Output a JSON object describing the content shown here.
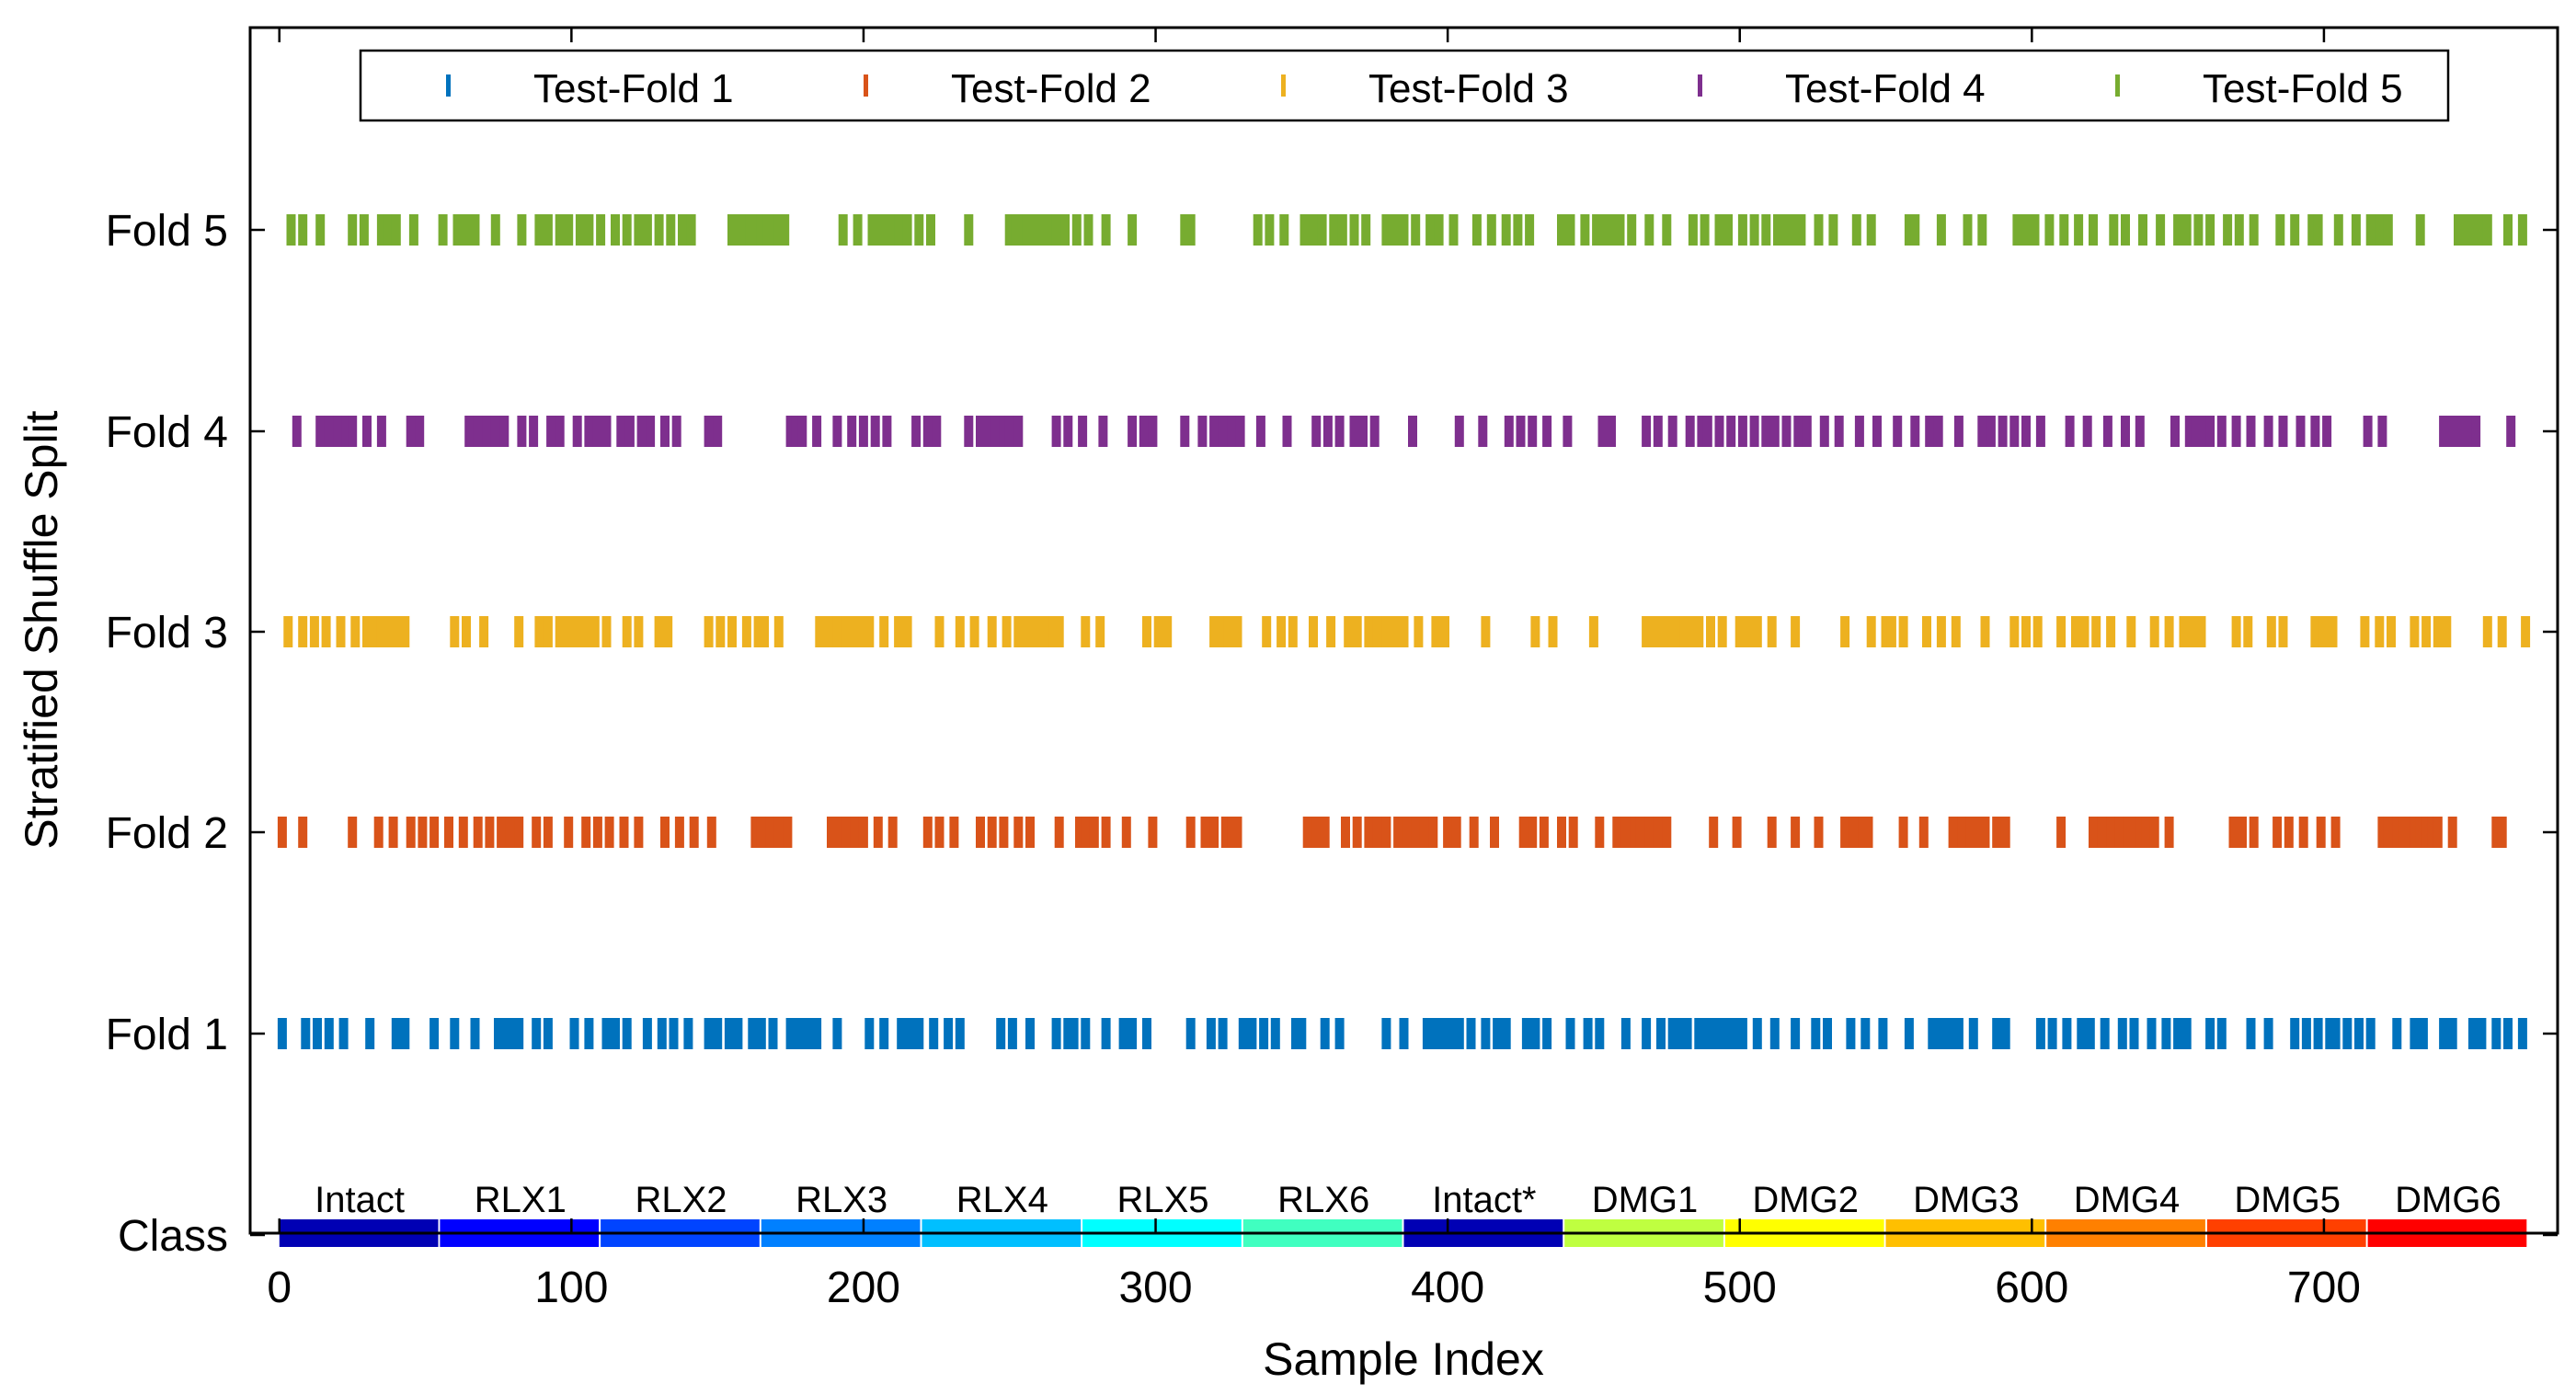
{
  "chart_data": {
    "type": "event-raster",
    "title": "",
    "xlabel": "Sample Index",
    "ylabel": "Stratified Shuffle Split",
    "xlim": [
      -10,
      780
    ],
    "xticks": [
      0,
      100,
      200,
      300,
      400,
      500,
      600,
      700
    ],
    "row_labels": [
      "Fold 5",
      "Fold 4",
      "Fold 3",
      "Fold 2",
      "Fold 1",
      "Class"
    ],
    "legend": {
      "placement": "top",
      "entries": [
        "Test-Fold 1",
        "Test-Fold 2",
        "Test-Fold 3",
        "Test-Fold 4",
        "Test-Fold 5"
      ]
    },
    "series": [
      {
        "name": "Test-Fold 1",
        "row": "Fold 1",
        "color": "#0072BD",
        "values": [
          1,
          9,
          13,
          17,
          22,
          31,
          40,
          43,
          53,
          60,
          67,
          75,
          77,
          79,
          82,
          88,
          92,
          101,
          106,
          112,
          115,
          119,
          126,
          131,
          135,
          140,
          147,
          150,
          154,
          157,
          162,
          165,
          169,
          175,
          177,
          179,
          181,
          184,
          191,
          202,
          207,
          213,
          216,
          219,
          224,
          229,
          233,
          247,
          251,
          257,
          266,
          270,
          272,
          276,
          283,
          289,
          292,
          297,
          312,
          319,
          323,
          330,
          333,
          337,
          341,
          348,
          350,
          358,
          363,
          379,
          385,
          393,
          396,
          398,
          401,
          404,
          408,
          413,
          417,
          420,
          427,
          430,
          434,
          442,
          448,
          452,
          461,
          468,
          473,
          477,
          480,
          482,
          486,
          489,
          492,
          495,
          498,
          501,
          506,
          512,
          519,
          526,
          530,
          538,
          543,
          549,
          558,
          566,
          568,
          570,
          572,
          575,
          580,
          588,
          591,
          603,
          607,
          612,
          617,
          620,
          625,
          631,
          635,
          641,
          646,
          650,
          653,
          661,
          665,
          675,
          681,
          690,
          694,
          698,
          702,
          704,
          708,
          712,
          716,
          725,
          731,
          734,
          741,
          744,
          751,
          754,
          759,
          763,
          768
        ]
      },
      {
        "name": "Test-Fold 2",
        "row": "Fold 2",
        "color": "#D95319",
        "values": [
          1,
          8,
          25,
          34,
          39,
          45,
          49,
          53,
          58,
          63,
          68,
          72,
          76,
          79,
          82,
          88,
          92,
          99,
          105,
          109,
          113,
          118,
          123,
          132,
          137,
          142,
          148,
          163,
          165,
          168,
          171,
          174,
          189,
          192,
          194,
          197,
          200,
          205,
          210,
          222,
          226,
          231,
          240,
          244,
          248,
          253,
          257,
          267,
          274,
          276,
          279,
          283,
          290,
          299,
          312,
          317,
          320,
          324,
          326,
          328,
          352,
          355,
          358,
          365,
          369,
          373,
          376,
          379,
          383,
          386,
          389,
          392,
          395,
          400,
          403,
          409,
          416,
          426,
          429,
          433,
          439,
          443,
          452,
          458,
          461,
          464,
          466,
          469,
          472,
          475,
          491,
          499,
          511,
          519,
          527,
          536,
          539,
          542,
          544,
          556,
          563,
          573,
          576,
          579,
          581,
          584,
          588,
          591,
          610,
          621,
          624,
          627,
          630,
          633,
          635,
          637,
          639,
          642,
          647,
          669,
          672,
          676,
          684,
          688,
          693,
          699,
          704,
          720,
          722,
          725,
          727,
          729,
          731,
          733,
          735,
          737,
          739,
          744,
          759,
          761
        ]
      },
      {
        "name": "Test-Fold 3",
        "row": "Fold 3",
        "color": "#EDB120",
        "values": [
          3,
          8,
          12,
          16,
          21,
          26,
          30,
          33,
          35,
          37,
          39,
          41,
          43,
          60,
          64,
          70,
          82,
          89,
          92,
          96,
          99,
          102,
          105,
          108,
          112,
          119,
          123,
          130,
          133,
          147,
          151,
          155,
          160,
          164,
          166,
          171,
          185,
          188,
          191,
          194,
          196,
          199,
          202,
          207,
          212,
          215,
          226,
          233,
          238,
          244,
          249,
          253,
          256,
          259,
          261,
          263,
          265,
          267,
          276,
          281,
          297,
          301,
          304,
          320,
          323,
          325,
          328,
          338,
          343,
          347,
          354,
          360,
          366,
          369,
          373,
          376,
          379,
          382,
          385,
          390,
          396,
          399,
          413,
          430,
          436,
          450,
          468,
          471,
          474,
          477,
          479,
          481,
          483,
          486,
          490,
          494,
          500,
          503,
          506,
          511,
          519,
          536,
          545,
          550,
          552,
          556,
          564,
          569,
          574,
          584,
          594,
          598,
          602,
          610,
          615,
          618,
          622,
          627,
          634,
          642,
          647,
          652,
          655,
          658,
          670,
          674,
          682,
          686,
          697,
          700,
          703,
          714,
          719,
          723,
          731,
          735,
          739,
          742,
          756,
          761,
          769
        ]
      },
      {
        "name": "Test-Fold 4",
        "row": "Fold 4",
        "color": "#7E2F8E",
        "values": [
          6,
          14,
          17,
          20,
          23,
          25,
          30,
          35,
          45,
          48,
          65,
          68,
          71,
          74,
          77,
          83,
          87,
          93,
          96,
          102,
          106,
          109,
          112,
          117,
          120,
          124,
          127,
          132,
          136,
          147,
          150,
          175,
          177,
          179,
          184,
          191,
          196,
          200,
          204,
          208,
          218,
          222,
          225,
          236,
          240,
          243,
          245,
          248,
          250,
          253,
          266,
          270,
          275,
          282,
          292,
          296,
          299,
          310,
          316,
          320,
          323,
          326,
          329,
          336,
          345,
          355,
          359,
          363,
          368,
          371,
          375,
          388,
          404,
          412,
          421,
          425,
          429,
          434,
          441,
          453,
          456,
          468,
          472,
          477,
          483,
          487,
          489,
          493,
          497,
          501,
          505,
          509,
          512,
          516,
          520,
          523,
          529,
          534,
          541,
          547,
          554,
          560,
          565,
          568,
          575,
          583,
          586,
          590,
          594,
          598,
          603,
          613,
          619,
          626,
          632,
          637,
          649,
          654,
          656,
          658,
          661,
          665,
          670,
          675,
          681,
          686,
          692,
          697,
          701,
          715,
          720,
          741,
          743,
          746,
          749,
          752,
          764
        ]
      },
      {
        "name": "Test-Fold 5",
        "row": "Fold 5",
        "color": "#77AC30",
        "values": [
          4,
          8,
          14,
          25,
          29,
          35,
          37,
          40,
          46,
          56,
          61,
          64,
          67,
          74,
          83,
          89,
          92,
          96,
          99,
          103,
          106,
          110,
          115,
          119,
          123,
          126,
          130,
          134,
          138,
          141,
          155,
          157,
          159,
          161,
          163,
          165,
          167,
          169,
          171,
          173,
          193,
          198,
          203,
          206,
          209,
          212,
          215,
          219,
          223,
          236,
          250,
          252,
          254,
          256,
          258,
          260,
          262,
          264,
          266,
          269,
          273,
          277,
          283,
          292,
          310,
          312,
          335,
          339,
          344,
          351,
          354,
          357,
          361,
          364,
          368,
          372,
          379,
          382,
          385,
          389,
          394,
          397,
          402,
          410,
          415,
          420,
          424,
          428,
          439,
          442,
          447,
          451,
          453,
          456,
          459,
          463,
          469,
          475,
          484,
          488,
          493,
          496,
          501,
          505,
          509,
          513,
          515,
          518,
          521,
          527,
          532,
          540,
          545,
          558,
          560,
          569,
          578,
          583,
          595,
          598,
          601,
          606,
          611,
          616,
          621,
          628,
          632,
          638,
          644,
          650,
          653,
          657,
          661,
          667,
          671,
          676,
          685,
          690,
          696,
          698,
          705,
          711,
          716,
          719,
          722,
          733,
          746,
          748,
          750,
          753,
          756,
          763,
          768
        ]
      }
    ],
    "class_bar": {
      "segments": [
        {
          "label": "Intact",
          "start": 0,
          "end": 55,
          "color": "#0000B4"
        },
        {
          "label": "RLX1",
          "start": 55,
          "end": 110,
          "color": "#0000FF"
        },
        {
          "label": "RLX2",
          "start": 110,
          "end": 165,
          "color": "#0044FF"
        },
        {
          "label": "RLX3",
          "start": 165,
          "end": 220,
          "color": "#0080FF"
        },
        {
          "label": "RLX4",
          "start": 220,
          "end": 275,
          "color": "#00BFFF"
        },
        {
          "label": "RLX5",
          "start": 275,
          "end": 330,
          "color": "#00FFFF"
        },
        {
          "label": "RLX6",
          "start": 330,
          "end": 385,
          "color": "#40FFC0"
        },
        {
          "label": "Intact*",
          "start": 385,
          "end": 440,
          "color": "#0000B4"
        },
        {
          "label": "DMG1",
          "start": 440,
          "end": 495,
          "color": "#BFFF40"
        },
        {
          "label": "DMG2",
          "start": 495,
          "end": 550,
          "color": "#FFFF00"
        },
        {
          "label": "DMG3",
          "start": 550,
          "end": 605,
          "color": "#FFBF00"
        },
        {
          "label": "DMG4",
          "start": 605,
          "end": 660,
          "color": "#FF8000"
        },
        {
          "label": "DMG5",
          "start": 660,
          "end": 715,
          "color": "#FF4000"
        },
        {
          "label": "DMG6",
          "start": 715,
          "end": 770,
          "color": "#FF0000"
        }
      ]
    }
  }
}
